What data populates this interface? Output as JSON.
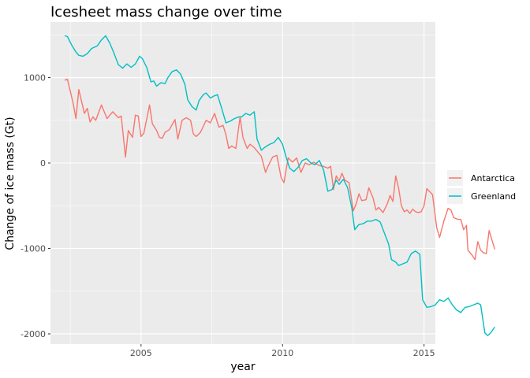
{
  "chart_data": {
    "type": "line",
    "title": "Icesheet mass change over time",
    "xlabel": "year",
    "ylabel": "Change of ice mass (Gt)",
    "xlim": [
      2001.8,
      2015.4
    ],
    "ylim": [
      -2120,
      1650
    ],
    "x_ticks": [
      2005,
      2010,
      2015
    ],
    "x_tick_labels": [
      "2005",
      "2010",
      "2015"
    ],
    "y_ticks": [
      -2000,
      -1000,
      0,
      1000
    ],
    "y_tick_labels": [
      "-2000",
      "-1000",
      "0",
      "1000"
    ],
    "grid": true,
    "legend_position": "right",
    "series": [
      {
        "name": "Antarctica",
        "color": "#f8766d",
        "points": [
          [
            2002.3,
            970
          ],
          [
            2002.4,
            980
          ],
          [
            2002.6,
            700
          ],
          [
            2002.7,
            520
          ],
          [
            2002.8,
            860
          ],
          [
            2003.0,
            580
          ],
          [
            2003.1,
            640
          ],
          [
            2003.2,
            480
          ],
          [
            2003.3,
            540
          ],
          [
            2003.4,
            500
          ],
          [
            2003.6,
            680
          ],
          [
            2003.8,
            520
          ],
          [
            2004.0,
            600
          ],
          [
            2004.2,
            530
          ],
          [
            2004.3,
            550
          ],
          [
            2004.45,
            70
          ],
          [
            2004.55,
            380
          ],
          [
            2004.7,
            300
          ],
          [
            2004.8,
            560
          ],
          [
            2004.9,
            550
          ],
          [
            2005.0,
            310
          ],
          [
            2005.1,
            350
          ],
          [
            2005.3,
            680
          ],
          [
            2005.4,
            460
          ],
          [
            2005.55,
            380
          ],
          [
            2005.65,
            300
          ],
          [
            2005.75,
            290
          ],
          [
            2005.85,
            360
          ],
          [
            2006.0,
            390
          ],
          [
            2006.2,
            510
          ],
          [
            2006.3,
            280
          ],
          [
            2006.45,
            500
          ],
          [
            2006.6,
            530
          ],
          [
            2006.75,
            500
          ],
          [
            2006.85,
            340
          ],
          [
            2006.95,
            310
          ],
          [
            2007.1,
            360
          ],
          [
            2007.3,
            500
          ],
          [
            2007.45,
            470
          ],
          [
            2007.6,
            580
          ],
          [
            2007.75,
            420
          ],
          [
            2007.9,
            440
          ],
          [
            2008.0,
            330
          ],
          [
            2008.1,
            170
          ],
          [
            2008.2,
            200
          ],
          [
            2008.35,
            170
          ],
          [
            2008.5,
            540
          ],
          [
            2008.6,
            300
          ],
          [
            2008.75,
            170
          ],
          [
            2008.85,
            220
          ],
          [
            2009.0,
            180
          ],
          [
            2009.1,
            140
          ],
          [
            2009.25,
            80
          ],
          [
            2009.4,
            -110
          ],
          [
            2009.5,
            -30
          ],
          [
            2009.65,
            70
          ],
          [
            2009.8,
            90
          ],
          [
            2009.95,
            -170
          ],
          [
            2010.05,
            -230
          ],
          [
            2010.2,
            60
          ],
          [
            2010.35,
            10
          ],
          [
            2010.5,
            60
          ],
          [
            2010.65,
            -110
          ],
          [
            2010.8,
            0
          ],
          [
            2010.95,
            -20
          ],
          [
            2011.1,
            10
          ],
          [
            2011.3,
            -30
          ],
          [
            2011.45,
            -40
          ],
          [
            2011.6,
            -60
          ],
          [
            2011.7,
            -40
          ],
          [
            2011.8,
            -310
          ],
          [
            2011.9,
            -150
          ],
          [
            2012.0,
            -210
          ],
          [
            2012.1,
            -120
          ],
          [
            2012.2,
            -200
          ],
          [
            2012.35,
            -230
          ],
          [
            2012.5,
            -560
          ],
          [
            2012.6,
            -480
          ],
          [
            2012.7,
            -360
          ],
          [
            2012.8,
            -440
          ],
          [
            2012.95,
            -430
          ],
          [
            2013.05,
            -290
          ],
          [
            2013.2,
            -410
          ],
          [
            2013.3,
            -550
          ],
          [
            2013.4,
            -520
          ],
          [
            2013.55,
            -580
          ],
          [
            2013.7,
            -480
          ],
          [
            2013.8,
            -380
          ],
          [
            2013.9,
            -450
          ],
          [
            2014.0,
            -150
          ],
          [
            2014.1,
            -290
          ],
          [
            2014.2,
            -500
          ],
          [
            2014.3,
            -570
          ],
          [
            2014.4,
            -550
          ],
          [
            2014.5,
            -590
          ],
          [
            2014.6,
            -540
          ],
          [
            2014.7,
            -570
          ],
          [
            2014.8,
            -580
          ],
          [
            2014.9,
            -570
          ],
          [
            2015.0,
            -500
          ],
          [
            2015.1,
            -300
          ],
          [
            2015.3,
            -370
          ],
          [
            2015.45,
            -760
          ],
          [
            2015.55,
            -870
          ],
          [
            2015.7,
            -680
          ],
          [
            2015.85,
            -530
          ],
          [
            2015.95,
            -550
          ],
          [
            2016.05,
            -640
          ],
          [
            2016.2,
            -660
          ],
          [
            2016.3,
            -660
          ],
          [
            2016.4,
            -780
          ],
          [
            2016.5,
            -730
          ],
          [
            2016.55,
            -1020
          ],
          [
            2016.7,
            -1080
          ],
          [
            2016.8,
            -1130
          ],
          [
            2016.9,
            -920
          ],
          [
            2017.0,
            -1020
          ],
          [
            2017.1,
            -1050
          ],
          [
            2017.2,
            -1060
          ],
          [
            2017.3,
            -790
          ],
          [
            2017.4,
            -900
          ],
          [
            2017.5,
            -1010
          ]
        ]
      },
      {
        "name": "Greenland",
        "color": "#00bfc4",
        "points": [
          [
            2002.3,
            1490
          ],
          [
            2002.4,
            1480
          ],
          [
            2002.55,
            1380
          ],
          [
            2002.7,
            1300
          ],
          [
            2002.8,
            1260
          ],
          [
            2002.95,
            1250
          ],
          [
            2003.1,
            1280
          ],
          [
            2003.25,
            1340
          ],
          [
            2003.45,
            1370
          ],
          [
            2003.6,
            1440
          ],
          [
            2003.75,
            1490
          ],
          [
            2003.9,
            1400
          ],
          [
            2004.05,
            1280
          ],
          [
            2004.2,
            1150
          ],
          [
            2004.35,
            1110
          ],
          [
            2004.5,
            1160
          ],
          [
            2004.65,
            1120
          ],
          [
            2004.8,
            1160
          ],
          [
            2004.95,
            1250
          ],
          [
            2005.05,
            1220
          ],
          [
            2005.2,
            1120
          ],
          [
            2005.35,
            950
          ],
          [
            2005.45,
            960
          ],
          [
            2005.55,
            900
          ],
          [
            2005.7,
            940
          ],
          [
            2005.85,
            930
          ],
          [
            2005.95,
            1000
          ],
          [
            2006.1,
            1070
          ],
          [
            2006.25,
            1090
          ],
          [
            2006.4,
            1040
          ],
          [
            2006.55,
            920
          ],
          [
            2006.65,
            740
          ],
          [
            2006.8,
            660
          ],
          [
            2006.95,
            620
          ],
          [
            2007.05,
            730
          ],
          [
            2007.2,
            800
          ],
          [
            2007.3,
            820
          ],
          [
            2007.45,
            760
          ],
          [
            2007.55,
            780
          ],
          [
            2007.7,
            800
          ],
          [
            2007.85,
            640
          ],
          [
            2008.0,
            470
          ],
          [
            2008.15,
            490
          ],
          [
            2008.3,
            520
          ],
          [
            2008.45,
            540
          ],
          [
            2008.55,
            540
          ],
          [
            2008.7,
            580
          ],
          [
            2008.85,
            560
          ],
          [
            2009.0,
            600
          ],
          [
            2009.1,
            280
          ],
          [
            2009.25,
            150
          ],
          [
            2009.4,
            190
          ],
          [
            2009.55,
            220
          ],
          [
            2009.7,
            240
          ],
          [
            2009.85,
            300
          ],
          [
            2010.0,
            220
          ],
          [
            2010.1,
            100
          ],
          [
            2010.25,
            -60
          ],
          [
            2010.4,
            -100
          ],
          [
            2010.55,
            -50
          ],
          [
            2010.7,
            30
          ],
          [
            2010.85,
            50
          ],
          [
            2011.0,
            0
          ],
          [
            2011.15,
            -20
          ],
          [
            2011.3,
            30
          ],
          [
            2011.45,
            -80
          ],
          [
            2011.6,
            -330
          ],
          [
            2011.75,
            -310
          ],
          [
            2011.9,
            -200
          ],
          [
            2012.0,
            -250
          ],
          [
            2012.15,
            -190
          ],
          [
            2012.3,
            -290
          ],
          [
            2012.45,
            -530
          ],
          [
            2012.55,
            -780
          ],
          [
            2012.7,
            -720
          ],
          [
            2012.85,
            -710
          ],
          [
            2013.0,
            -680
          ],
          [
            2013.15,
            -680
          ],
          [
            2013.3,
            -660
          ],
          [
            2013.45,
            -690
          ],
          [
            2013.6,
            -820
          ],
          [
            2013.75,
            -950
          ],
          [
            2013.85,
            -1130
          ],
          [
            2014.0,
            -1160
          ],
          [
            2014.1,
            -1200
          ],
          [
            2014.25,
            -1180
          ],
          [
            2014.4,
            -1160
          ],
          [
            2014.55,
            -1060
          ],
          [
            2014.7,
            -1030
          ],
          [
            2014.85,
            -1070
          ],
          [
            2014.95,
            -1600
          ],
          [
            2015.1,
            -1690
          ],
          [
            2015.25,
            -1680
          ],
          [
            2015.4,
            -1660
          ],
          [
            2015.55,
            -1600
          ],
          [
            2015.7,
            -1620
          ],
          [
            2015.85,
            -1580
          ],
          [
            2016.0,
            -1660
          ],
          [
            2016.15,
            -1720
          ],
          [
            2016.3,
            -1750
          ],
          [
            2016.45,
            -1690
          ],
          [
            2016.6,
            -1680
          ],
          [
            2016.75,
            -1660
          ],
          [
            2016.9,
            -1640
          ],
          [
            2017.0,
            -1660
          ],
          [
            2017.15,
            -1990
          ],
          [
            2017.25,
            -2020
          ],
          [
            2017.35,
            -1990
          ],
          [
            2017.5,
            -1920
          ]
        ]
      }
    ]
  }
}
